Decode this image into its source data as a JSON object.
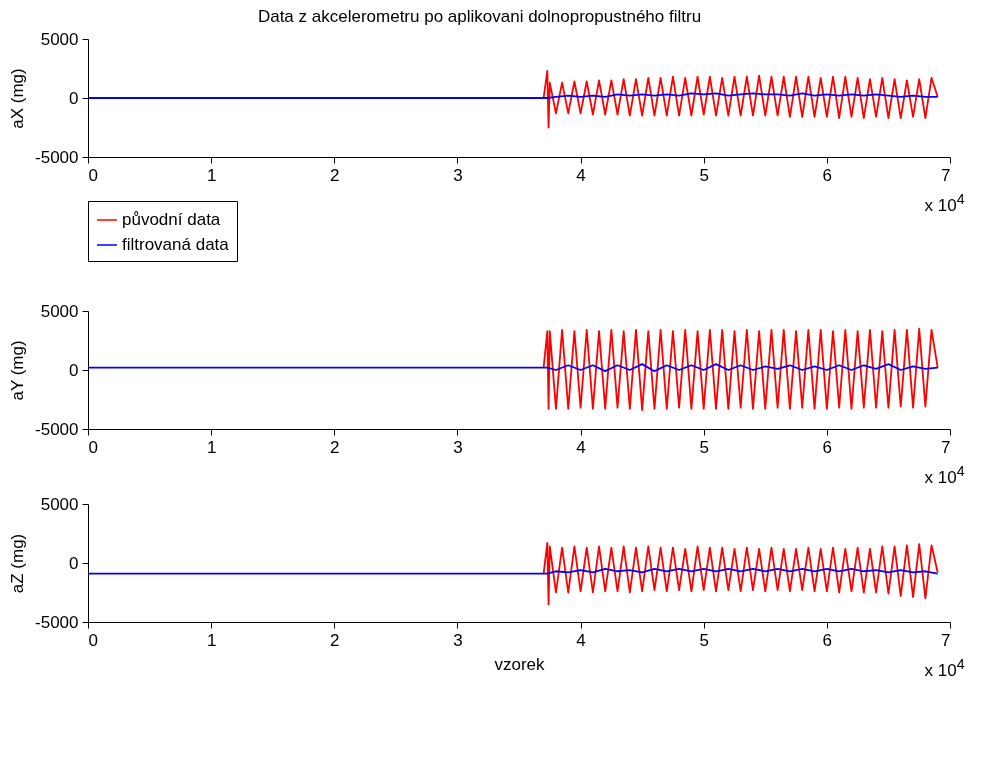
{
  "chart_data": [
    {
      "type": "line",
      "title": "Data z akcelerometru po aplikovani dolnopropustného filtru",
      "ylabel": "aX (mg)",
      "xlim": [
        0,
        7
      ],
      "ylim": [
        -5000,
        5000
      ],
      "yticks": [
        -5000,
        0,
        5000
      ],
      "xticks": [
        0,
        1,
        2,
        3,
        4,
        5,
        6,
        7
      ],
      "annotations": [
        "x 10$^{4}$"
      ],
      "grid": false,
      "legend": "bottom",
      "marker": "none",
      "line_style": "solid",
      "series": [
        {
          "name": "původní data",
          "color": "#ff0000",
          "x": [
            0,
            3.7,
            3.73,
            3.74,
            3.75,
            3.8,
            3.85,
            3.9,
            3.95,
            4,
            4.05,
            4.1,
            4.15,
            4.2,
            4.25,
            4.3,
            4.35,
            4.4,
            4.45,
            4.5,
            4.55,
            4.6,
            4.65,
            4.7,
            4.75,
            4.8,
            4.85,
            4.9,
            4.95,
            5,
            5.05,
            5.1,
            5.15,
            5.2,
            5.25,
            5.3,
            5.35,
            5.4,
            5.45,
            5.5,
            5.55,
            5.6,
            5.65,
            5.7,
            5.75,
            5.8,
            5.85,
            5.9,
            5.95,
            6,
            6.05,
            6.1,
            6.15,
            6.2,
            6.25,
            6.3,
            6.35,
            6.4,
            6.45,
            6.5,
            6.55,
            6.6,
            6.65,
            6.7,
            6.75,
            6.8,
            6.85,
            6.9
          ],
          "values": [
            0,
            0,
            2300,
            -2500,
            1300,
            -1300,
            1300,
            -1300,
            1400,
            -1300,
            1400,
            -1400,
            1500,
            -1400,
            1500,
            -1400,
            1600,
            -1500,
            1600,
            -1500,
            1700,
            -1500,
            1700,
            -1500,
            1800,
            -1500,
            1700,
            -1500,
            1800,
            -1400,
            1800,
            -1500,
            1700,
            -1500,
            1800,
            -1500,
            1800,
            -1500,
            1900,
            -1500,
            1800,
            -1500,
            1800,
            -1600,
            1800,
            -1600,
            1800,
            -1600,
            1700,
            -1600,
            1800,
            -1700,
            1800,
            -1600,
            1700,
            -1700,
            1600,
            -1600,
            1700,
            -1700,
            1600,
            -1700,
            1500,
            -1600,
            1600,
            -1700,
            1700,
            100
          ]
        },
        {
          "name": "filtrovaná data",
          "color": "#0000ff",
          "x": [
            0,
            3.73,
            3.8,
            3.9,
            4,
            4.1,
            4.2,
            4.3,
            4.4,
            4.5,
            4.6,
            4.7,
            4.8,
            4.9,
            5,
            5.1,
            5.2,
            5.3,
            5.4,
            5.5,
            5.6,
            5.7,
            5.8,
            5.9,
            6,
            6.1,
            6.2,
            6.3,
            6.4,
            6.5,
            6.6,
            6.7,
            6.8,
            6.9
          ],
          "values": [
            0,
            0,
            100,
            200,
            100,
            200,
            100,
            300,
            200,
            300,
            200,
            300,
            200,
            400,
            300,
            400,
            200,
            300,
            400,
            300,
            300,
            200,
            400,
            200,
            300,
            200,
            300,
            200,
            300,
            200,
            100,
            200,
            100,
            100
          ]
        }
      ]
    },
    {
      "type": "line",
      "ylabel": "aY (mg)",
      "xlim": [
        0,
        7
      ],
      "ylim": [
        -5000,
        5000
      ],
      "yticks": [
        -5000,
        0,
        5000
      ],
      "xticks": [
        0,
        1,
        2,
        3,
        4,
        5,
        6,
        7
      ],
      "annotations": [
        "x 10$^{4}$"
      ],
      "grid": false,
      "marker": "none",
      "line_style": "solid",
      "series": [
        {
          "color": "#ff0000",
          "x": [
            3.7,
            3.73,
            3.74,
            3.75,
            3.8,
            3.85,
            3.9,
            3.95,
            4,
            4.05,
            4.1,
            4.15,
            4.2,
            4.25,
            4.3,
            4.35,
            4.4,
            4.45,
            4.5,
            4.55,
            4.6,
            4.65,
            4.7,
            4.75,
            4.8,
            4.85,
            4.9,
            4.95,
            5,
            5.05,
            5.1,
            5.15,
            5.2,
            5.25,
            5.3,
            5.35,
            5.4,
            5.45,
            5.5,
            5.55,
            5.6,
            5.65,
            5.7,
            5.75,
            5.8,
            5.85,
            5.9,
            5.95,
            6,
            6.05,
            6.1,
            6.15,
            6.2,
            6.25,
            6.3,
            6.35,
            6.4,
            6.45,
            6.5,
            6.55,
            6.6,
            6.65,
            6.7,
            6.75,
            6.8,
            6.85,
            6.9
          ],
          "values": [
            200,
            3300,
            -3300,
            3300,
            -3300,
            3400,
            -3300,
            3300,
            -3200,
            3400,
            -3300,
            3300,
            -3300,
            3400,
            -3200,
            3300,
            -3300,
            3400,
            -3400,
            3300,
            -3300,
            3400,
            -3300,
            3300,
            -3200,
            3400,
            -3300,
            3300,
            -3300,
            3400,
            -3300,
            3400,
            -3300,
            3300,
            -3200,
            3400,
            -3300,
            3300,
            -3300,
            3400,
            -3200,
            3400,
            -3300,
            3300,
            -3200,
            3400,
            -3300,
            3400,
            -3300,
            3300,
            -3200,
            3400,
            -3300,
            3300,
            -3200,
            3400,
            -3200,
            3300,
            -3200,
            3400,
            -3100,
            3400,
            -3200,
            3500,
            -3100,
            3400,
            200
          ]
        },
        {
          "color": "#0000ff",
          "x": [
            0,
            3.73,
            3.8,
            3.9,
            4,
            4.1,
            4.2,
            4.3,
            4.4,
            4.5,
            4.6,
            4.7,
            4.8,
            4.9,
            5,
            5.1,
            5.2,
            5.3,
            5.4,
            5.5,
            5.6,
            5.7,
            5.8,
            5.9,
            6,
            6.1,
            6.2,
            6.3,
            6.4,
            6.5,
            6.6,
            6.7,
            6.8,
            6.9
          ],
          "values": [
            200,
            200,
            0,
            400,
            0,
            400,
            -100,
            400,
            0,
            500,
            -100,
            400,
            0,
            400,
            0,
            500,
            0,
            400,
            0,
            300,
            100,
            400,
            0,
            300,
            0,
            400,
            0,
            400,
            100,
            500,
            0,
            300,
            100,
            200
          ]
        }
      ]
    },
    {
      "type": "line",
      "xlabel": "vzorek",
      "ylabel": "aZ (mg)",
      "xlim": [
        0,
        7
      ],
      "ylim": [
        -5000,
        5000
      ],
      "yticks": [
        -5000,
        0,
        5000
      ],
      "xticks": [
        0,
        1,
        2,
        3,
        4,
        5,
        6,
        7
      ],
      "annotations": [
        "x 10$^{4}$"
      ],
      "grid": false,
      "marker": "none",
      "line_style": "solid",
      "series": [
        {
          "color": "#ff0000",
          "x": [
            3.7,
            3.73,
            3.74,
            3.75,
            3.8,
            3.85,
            3.9,
            3.95,
            4,
            4.05,
            4.1,
            4.15,
            4.2,
            4.25,
            4.3,
            4.35,
            4.4,
            4.45,
            4.5,
            4.55,
            4.6,
            4.65,
            4.7,
            4.75,
            4.8,
            4.85,
            4.9,
            4.95,
            5,
            5.05,
            5.1,
            5.15,
            5.2,
            5.25,
            5.3,
            5.35,
            5.4,
            5.45,
            5.5,
            5.55,
            5.6,
            5.65,
            5.7,
            5.75,
            5.8,
            5.85,
            5.9,
            5.95,
            6,
            6.05,
            6.1,
            6.15,
            6.2,
            6.25,
            6.3,
            6.35,
            6.4,
            6.45,
            6.5,
            6.55,
            6.6,
            6.65,
            6.7,
            6.75,
            6.8,
            6.85,
            6.9
          ],
          "values": [
            -900,
            1700,
            -3500,
            1400,
            -2500,
            1300,
            -2500,
            1400,
            -2400,
            1300,
            -2500,
            1400,
            -2400,
            1300,
            -2400,
            1400,
            -2500,
            1300,
            -2400,
            1400,
            -2300,
            1300,
            -2400,
            1300,
            -2300,
            1200,
            -2400,
            1400,
            -2300,
            1300,
            -2400,
            1300,
            -2300,
            1200,
            -2400,
            1300,
            -2300,
            1200,
            -2400,
            1300,
            -2300,
            1200,
            -2400,
            1200,
            -2300,
            1300,
            -2400,
            1200,
            -2400,
            1300,
            -2500,
            1200,
            -2400,
            1300,
            -2500,
            1200,
            -2500,
            1400,
            -2600,
            1400,
            -2800,
            1500,
            -2900,
            1600,
            -3000,
            1500,
            -800
          ]
        },
        {
          "color": "#0000ff",
          "x": [
            0,
            3.73,
            3.8,
            3.9,
            4,
            4.1,
            4.2,
            4.3,
            4.4,
            4.5,
            4.6,
            4.7,
            4.8,
            4.9,
            5,
            5.1,
            5.2,
            5.3,
            5.4,
            5.5,
            5.6,
            5.7,
            5.8,
            5.9,
            6,
            6.1,
            6.2,
            6.3,
            6.4,
            6.5,
            6.6,
            6.7,
            6.8,
            6.9
          ],
          "values": [
            -900,
            -900,
            -700,
            -800,
            -600,
            -800,
            -500,
            -700,
            -600,
            -800,
            -500,
            -700,
            -500,
            -700,
            -500,
            -700,
            -500,
            -700,
            -500,
            -700,
            -500,
            -700,
            -500,
            -700,
            -500,
            -700,
            -500,
            -700,
            -600,
            -800,
            -600,
            -800,
            -700,
            -900
          ]
        }
      ]
    }
  ]
}
